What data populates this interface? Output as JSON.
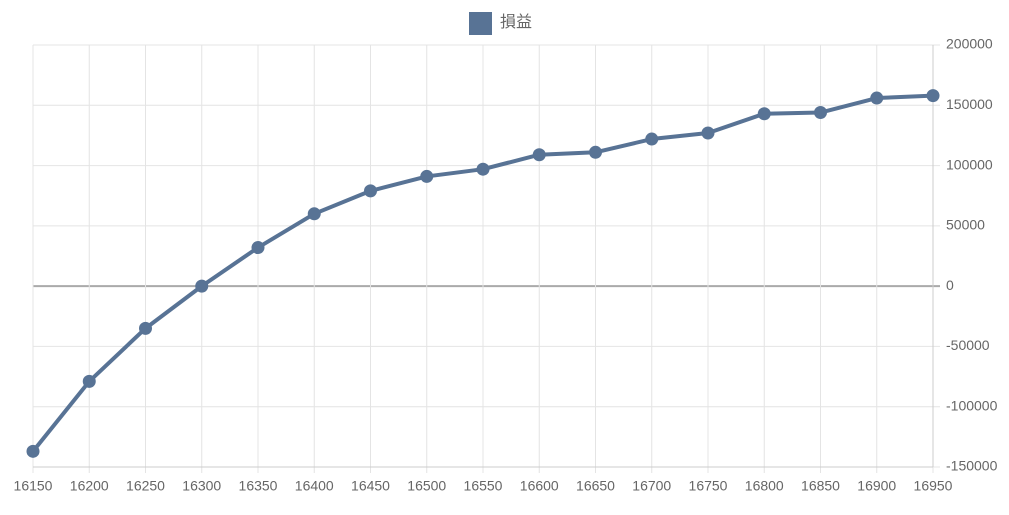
{
  "chart_data": {
    "type": "line",
    "x": [
      16150,
      16200,
      16250,
      16300,
      16350,
      16400,
      16450,
      16500,
      16550,
      16600,
      16650,
      16700,
      16750,
      16800,
      16850,
      16900,
      16950
    ],
    "series": [
      {
        "name": "損益",
        "color": "#587395",
        "values": [
          -137000,
          -79000,
          -35000,
          0,
          32000,
          60000,
          79000,
          91000,
          97000,
          109000,
          111000,
          122000,
          127000,
          143000,
          144000,
          156000,
          158000
        ]
      }
    ],
    "xlim": [
      16150,
      16950
    ],
    "xticks": [
      16150,
      16200,
      16250,
      16300,
      16350,
      16400,
      16450,
      16500,
      16550,
      16600,
      16650,
      16700,
      16750,
      16800,
      16850,
      16900,
      16950
    ],
    "ylim": [
      -150000,
      200000
    ],
    "yticks": [
      -150000,
      -100000,
      -50000,
      0,
      50000,
      100000,
      150000,
      200000
    ],
    "grid": true,
    "y_axis_side": "right",
    "legend": "top"
  }
}
